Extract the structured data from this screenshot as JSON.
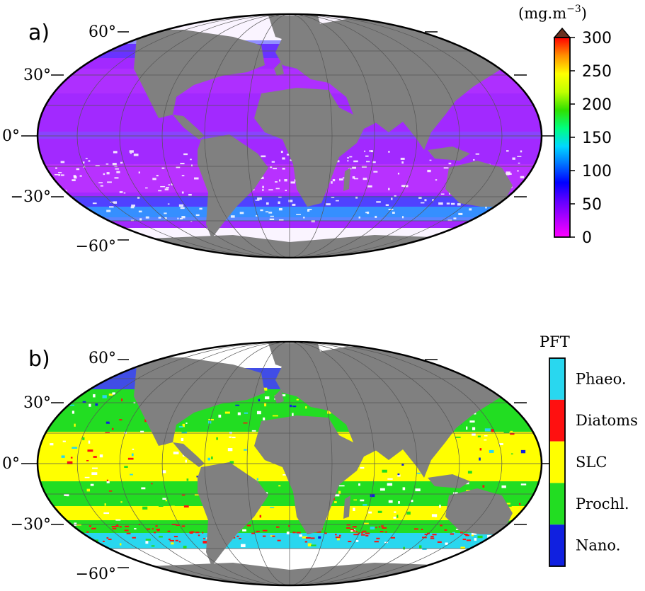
{
  "panels": [
    {
      "label": "a)",
      "lat_labels": [
        "60°",
        "30°",
        "0°",
        "−30°",
        "−60°"
      ],
      "colorbar": {
        "unit_base": "(mg.m",
        "unit_exp": "−3",
        "unit_close": ")",
        "ticks": [
          "300",
          "250",
          "200",
          "150",
          "100",
          "50",
          "0"
        ],
        "colors": [
          "#ff00ff",
          "#b000ff",
          "#6000ff",
          "#0000ff",
          "#0070ff",
          "#00d8ff",
          "#00ff80",
          "#30e000",
          "#c0ff00",
          "#ffff00",
          "#ff9000",
          "#ff0000"
        ],
        "overflow_color": "#6b3020"
      }
    },
    {
      "label": "b)",
      "lat_labels": [
        "60°",
        "30°",
        "0°",
        "−30°",
        "−60°"
      ],
      "legend_title": "PFT",
      "classes": [
        {
          "label": "Phaeo.",
          "color": "#29d7ef"
        },
        {
          "label": "Diatoms",
          "color": "#ff1010"
        },
        {
          "label": "SLC",
          "color": "#ffff00"
        },
        {
          "label": "Prochl.",
          "color": "#22dd22"
        },
        {
          "label": "Nano.",
          "color": "#1020e0"
        }
      ]
    }
  ]
}
